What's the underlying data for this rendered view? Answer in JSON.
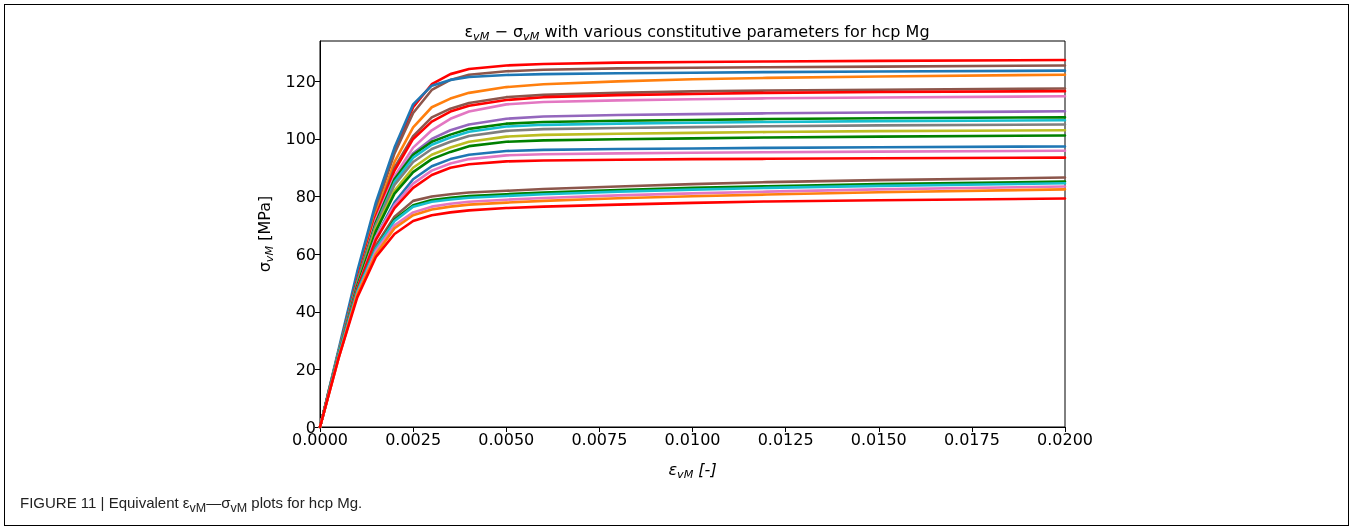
{
  "chart_data": {
    "type": "line",
    "title": "ε$_{vM}$ − σ$_{vM}$ with various constitutive parameters for hcp Mg",
    "xlabel": "ε$_{vM}$ [-]",
    "ylabel": "σ$_{vM}$ [MPa]",
    "annotations": [
      "FIGURE 11 | Equivalent ε$_{vM}$—σ$_{vM}$ plots for hcp Mg."
    ],
    "x": [
      0,
      0.0005,
      0.001,
      0.0015,
      0.002,
      0.0025,
      0.003,
      0.0035,
      0.004,
      0.005,
      0.006,
      0.008,
      0.01,
      0.012,
      0.015,
      0.02
    ],
    "xlim": [
      0,
      0.02
    ],
    "xticks": [
      {
        "value": 0,
        "label": "0.0000"
      },
      {
        "value": 0.0025,
        "label": "0.0025"
      },
      {
        "value": 0.005,
        "label": "0.0050"
      },
      {
        "value": 0.0075,
        "label": "0.0075"
      },
      {
        "value": 0.01,
        "label": "0.0100"
      },
      {
        "value": 0.0125,
        "label": "0.0125"
      },
      {
        "value": 0.015,
        "label": "0.0150"
      },
      {
        "value": 0.0175,
        "label": "0.0175"
      },
      {
        "value": 0.02,
        "label": "0.0200"
      }
    ],
    "ylim": [
      0,
      134
    ],
    "yticks": [
      0,
      20,
      40,
      60,
      80,
      100,
      120
    ],
    "marker": "none",
    "series": [
      {
        "color": "#ff0000",
        "values": [
          0,
          26,
          52,
          76,
          96,
          111,
          119,
          122.5,
          124.3,
          125.5,
          126,
          126.5,
          126.7,
          126.9,
          127.1,
          127.4
        ]
      },
      {
        "color": "#8c564b",
        "values": [
          0,
          26,
          52,
          76,
          95,
          109,
          117,
          120.5,
          122.3,
          123.5,
          124,
          124.5,
          124.7,
          124.9,
          125.1,
          125.5
        ]
      },
      {
        "color": "#1f77b4",
        "values": [
          0,
          27,
          54,
          78,
          97,
          112,
          118.5,
          120.5,
          121.5,
          122.2,
          122.5,
          122.8,
          123,
          123.2,
          123.4,
          123.7
        ]
      },
      {
        "color": "#ff7f0e",
        "values": [
          0,
          26,
          51,
          74,
          92,
          104,
          111,
          114,
          116,
          118,
          119,
          120,
          120.7,
          121.2,
          121.7,
          122.3
        ]
      },
      {
        "color": "#8c564b",
        "values": [
          0,
          26,
          51,
          73,
          90,
          101,
          107.5,
          110.5,
          112.5,
          114.5,
          115.3,
          116,
          116.5,
          116.8,
          117.1,
          117.5
        ]
      },
      {
        "color": "#ff0000",
        "values": [
          0,
          26,
          51,
          73,
          89,
          100,
          106,
          109.5,
          111.5,
          113.5,
          114.5,
          115.2,
          115.6,
          116,
          116.3,
          116.6
        ]
      },
      {
        "color": "#e377c2",
        "values": [
          0,
          26,
          50,
          72,
          87,
          97,
          103,
          107,
          109.5,
          112,
          112.8,
          113.4,
          113.8,
          114.1,
          114.4,
          114.8
        ]
      },
      {
        "color": "#9467bd",
        "values": [
          0,
          26,
          50,
          71,
          86,
          95,
          100,
          103,
          105,
          107,
          107.8,
          108.3,
          108.6,
          108.9,
          109.2,
          109.6
        ]
      },
      {
        "color": "#008000",
        "values": [
          0,
          26,
          50,
          71,
          86,
          94.5,
          99,
          101.5,
          103.5,
          105.3,
          105.9,
          106.3,
          106.6,
          106.9,
          107.2,
          107.5
        ]
      },
      {
        "color": "#17becf",
        "values": [
          0,
          26,
          50,
          70,
          85,
          93.5,
          98,
          100.5,
          102.5,
          104.3,
          104.9,
          105.3,
          105.6,
          105.9,
          106.2,
          106.5
        ]
      },
      {
        "color": "#7f7f7f",
        "values": [
          0,
          26,
          50,
          70,
          84,
          92,
          96.5,
          99,
          101,
          102.8,
          103.4,
          103.8,
          104.1,
          104.4,
          104.7,
          105
        ]
      },
      {
        "color": "#bcbd22",
        "values": [
          null,
          null,
          49,
          69,
          82,
          90,
          94.5,
          97,
          99,
          100.8,
          101.4,
          101.8,
          102.1,
          102.4,
          102.7,
          103
        ]
      },
      {
        "color": "#008000",
        "values": [
          0,
          25,
          49,
          68,
          81,
          88.5,
          93,
          95.5,
          97.5,
          99,
          99.5,
          99.9,
          100.2,
          100.5,
          100.8,
          101.2
        ]
      },
      {
        "color": "#1f77b4",
        "values": [
          0,
          25,
          48,
          66,
          78,
          86,
          90.5,
          93,
          94.5,
          95.8,
          96.2,
          96.5,
          96.7,
          96.9,
          97.1,
          97.4
        ]
      },
      {
        "color": "#e377c2",
        "values": [
          0,
          25,
          48,
          66,
          77,
          84.5,
          89,
          91.5,
          93,
          94.3,
          94.7,
          95,
          95.2,
          95.4,
          95.6,
          95.9
        ]
      },
      {
        "color": "#ff0000",
        "values": [
          0,
          25,
          48,
          65,
          76,
          83,
          87.5,
          90,
          91.2,
          92.2,
          92.5,
          92.8,
          93,
          93.1,
          93.3,
          93.5
        ]
      },
      {
        "color": "#8c564b",
        "values": [
          0,
          25,
          47,
          63,
          73,
          78.5,
          80,
          80.8,
          81.4,
          82,
          82.6,
          83.5,
          84.3,
          85,
          85.7,
          86.6
        ]
      },
      {
        "color": "#008000",
        "values": [
          0,
          25,
          47,
          62,
          72,
          77,
          78.8,
          79.6,
          80.2,
          80.8,
          81.4,
          82.3,
          83,
          83.6,
          84.3,
          85.2
        ]
      },
      {
        "color": "#17becf",
        "values": [
          0,
          25,
          47,
          62,
          71.5,
          76.5,
          78.2,
          79,
          79.6,
          80.2,
          80.8,
          81.7,
          82.4,
          83,
          83.7,
          84.6
        ]
      },
      {
        "color": "#e377c2",
        "values": [
          0,
          24,
          46,
          61,
          70,
          74.5,
          76.5,
          77.5,
          78.2,
          78.9,
          79.5,
          80.4,
          81.1,
          81.7,
          82.5,
          83.5
        ]
      },
      {
        "color": "#ff7f0e",
        "values": [
          0,
          24,
          46,
          60,
          69,
          73.5,
          75.5,
          76.5,
          77.2,
          77.9,
          78.5,
          79.4,
          80.1,
          80.7,
          81.5,
          82.5
        ]
      },
      {
        "color": "#ff0000",
        "values": [
          0,
          24,
          45,
          59,
          67,
          71.5,
          73.5,
          74.5,
          75.2,
          76,
          76.5,
          77.2,
          77.8,
          78.3,
          78.7,
          79.3
        ]
      }
    ]
  }
}
